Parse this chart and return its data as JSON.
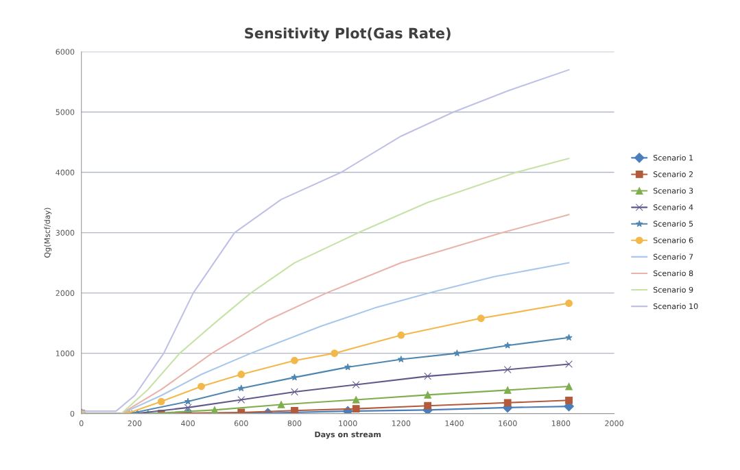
{
  "chart_data": {
    "type": "line",
    "title": "Sensitivity Plot(Gas Rate)",
    "xlabel": "Days on stream",
    "ylabel": "Qg(Mscf/day)",
    "xlim": [
      0,
      2000
    ],
    "xticks": [
      0,
      200,
      400,
      600,
      800,
      1000,
      1200,
      1400,
      1600,
      1800,
      2000
    ],
    "ylim": [
      0,
      6000
    ],
    "yticks": [
      0,
      1000,
      2000,
      3000,
      4000,
      5000,
      6000
    ],
    "grid": "y",
    "legend": "right",
    "series": [
      {
        "name": "Scenario 1",
        "color": "#4a7ebb",
        "marker": "diamond",
        "x": [
          0,
          400,
          700,
          1000,
          1300,
          1600,
          1830
        ],
        "values": [
          0,
          0,
          10,
          40,
          60,
          100,
          120
        ]
      },
      {
        "name": "Scenario 2",
        "color": "#b35a3c",
        "marker": "square",
        "x": [
          0,
          300,
          600,
          800,
          1031,
          1300,
          1600,
          1830
        ],
        "values": [
          0,
          0,
          20,
          50,
          80,
          130,
          180,
          220
        ]
      },
      {
        "name": "Scenario 3",
        "color": "#7fae4e",
        "marker": "triangle",
        "x": [
          0,
          250,
          500,
          750,
          1031,
          1300,
          1600,
          1830
        ],
        "values": [
          0,
          0,
          60,
          150,
          230,
          310,
          390,
          450
        ]
      },
      {
        "name": "Scenario 4",
        "color": "#5e5a8c",
        "marker": "cross",
        "x": [
          0,
          200,
          400,
          600,
          800,
          1031,
          1300,
          1600,
          1830
        ],
        "values": [
          0,
          0,
          100,
          230,
          360,
          480,
          620,
          730,
          820
        ]
      },
      {
        "name": "Scenario 5",
        "color": "#4f86b0",
        "marker": "star",
        "x": [
          0,
          180,
          400,
          600,
          800,
          1000,
          1200,
          1410,
          1600,
          1830
        ],
        "values": [
          0,
          0,
          200,
          420,
          600,
          770,
          900,
          1000,
          1130,
          1260
        ]
      },
      {
        "name": "Scenario 6",
        "color": "#f2b84b",
        "marker": "circle",
        "x": [
          0,
          170,
          300,
          450,
          600,
          800,
          950,
          1200,
          1500,
          1830
        ],
        "values": [
          0,
          0,
          200,
          450,
          650,
          880,
          1000,
          1300,
          1580,
          1830
        ]
      },
      {
        "name": "Scenario 7",
        "color": "#a9c6ec",
        "marker": "none",
        "x": [
          0,
          150,
          300,
          450,
          636,
          900,
          1100,
          1306,
          1550,
          1830
        ],
        "values": [
          0,
          0,
          300,
          650,
          1000,
          1450,
          1750,
          2000,
          2270,
          2500
        ]
      },
      {
        "name": "Scenario 8",
        "color": "#e9b3aa",
        "marker": "none",
        "x": [
          0,
          150,
          300,
          490,
          700,
          920,
          1200,
          1580,
          1830
        ],
        "values": [
          0,
          0,
          400,
          1000,
          1550,
          2000,
          2500,
          3000,
          3300
        ]
      },
      {
        "name": "Scenario 9",
        "color": "#c6e2a6",
        "marker": "none",
        "x": [
          0,
          150,
          250,
          369,
          500,
          636,
          800,
          1040,
          1300,
          1632,
          1830
        ],
        "values": [
          0,
          0,
          400,
          1000,
          1500,
          2000,
          2500,
          3000,
          3500,
          4000,
          4230
        ]
      },
      {
        "name": "Scenario 10",
        "color": "#bfc0e6",
        "marker": "none",
        "x": [
          0,
          130,
          200,
          309,
          420,
          575,
          750,
          975,
          1200,
          1397,
          1600,
          1830
        ],
        "values": [
          40,
          40,
          300,
          1000,
          2000,
          3000,
          3550,
          4000,
          4600,
          5000,
          5350,
          5700
        ]
      }
    ]
  }
}
